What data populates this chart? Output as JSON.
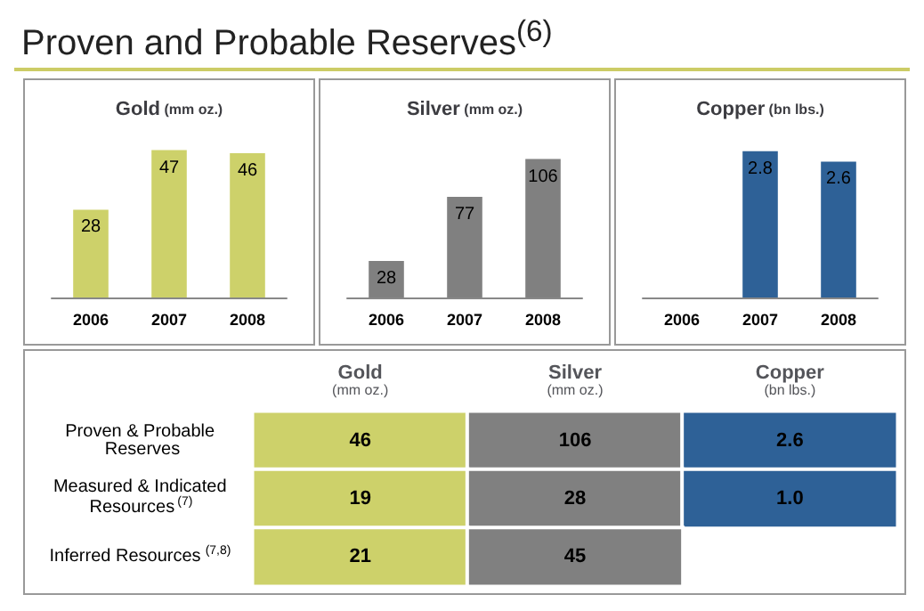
{
  "chart_data": [
    {
      "type": "bar",
      "title": "Gold (mm oz.)",
      "annotations": [
        "Proven and Probable Reserves$^{(6)}$"
      ],
      "categories": [
        "2006",
        "2007",
        "2008"
      ],
      "values": [
        28,
        47,
        46
      ],
      "color": "#cdd16a",
      "data_labels": true
    },
    {
      "type": "bar",
      "title": "Silver (mm oz.)",
      "categories": [
        "2006",
        "2007",
        "2008"
      ],
      "values": [
        28,
        77,
        106
      ],
      "color": "#808080",
      "data_labels": true
    },
    {
      "type": "bar",
      "title": "Copper (bn lbs.)",
      "categories": [
        "2006",
        "2007",
        "2008"
      ],
      "values": [
        null,
        2.8,
        2.6
      ],
      "color": "#2e6197",
      "data_labels": true
    },
    {
      "type": "heatmap",
      "categories": [
        "Gold (mm oz.)",
        "Silver (mm oz.)",
        "Copper (bn lbs.)"
      ],
      "colors": [
        "#cdd16a",
        "#808080",
        "#2e6197"
      ],
      "y_categories": [
        "Proven & Probable Reserves",
        "Measured & Indicated Resources$^{(7)}$",
        "Inferred Resources$^{(7,8)}$"
      ],
      "cells": [
        [
          46,
          106,
          2.6
        ],
        [
          19,
          28,
          1.0
        ],
        [
          21,
          45,
          null
        ]
      ],
      "cell_labels": [
        [
          "46",
          "106",
          "2.6"
        ],
        [
          "19",
          "28",
          "1.0"
        ],
        [
          "21",
          "45",
          null
        ]
      ],
      "data_labels": true
    }
  ]
}
